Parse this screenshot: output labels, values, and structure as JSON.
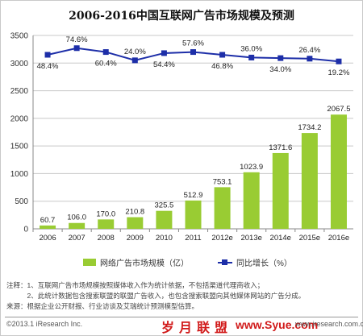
{
  "chart_data": {
    "type": "bar",
    "title": "2006-2016中国互联网广告市场规模及预测",
    "categories": [
      "2006",
      "2007",
      "2008",
      "2009",
      "2010",
      "2011",
      "2012e",
      "2013e",
      "2014e",
      "2015e",
      "2016e"
    ],
    "ylim": [
      0,
      3500
    ],
    "yticks": [
      0,
      500,
      1000,
      1500,
      2000,
      2500,
      3000,
      3500
    ],
    "grid": true,
    "legend_placement": "bottom",
    "series": [
      {
        "name": "网络广告市场规模（亿）",
        "type": "bar",
        "values": [
          60.7,
          106.0,
          170.0,
          210.8,
          325.5,
          512.9,
          753.1,
          1023.9,
          1371.6,
          1734.2,
          2067.5
        ],
        "labels": [
          "60.7",
          "106.0",
          "170.0",
          "210.8",
          "325.5",
          "512.9",
          "753.1",
          "1023.9",
          "1371.6",
          "1734.2",
          "2067.5"
        ],
        "color": "#99cc33"
      },
      {
        "name": "同比增长（%）",
        "type": "line",
        "values": [
          48.4,
          74.6,
          60.4,
          24.0,
          54.4,
          57.6,
          46.8,
          36.0,
          34.0,
          26.4,
          19.2
        ],
        "labels": [
          "48.4%",
          "74.6%",
          "60.4%",
          "24.0%",
          "54.4%",
          "57.6%",
          "46.8%",
          "36.0%",
          "34.0%",
          "26.4%",
          "19.2%"
        ],
        "plot_y_on_left_axis": [
          3150,
          3270,
          3200,
          3050,
          3180,
          3200,
          3150,
          3100,
          3090,
          3080,
          3030
        ],
        "color": "#1d2ea8"
      }
    ]
  },
  "notes": {
    "line1": "注释：1、互联网广告市场规模按照媒体收入作为统计依据，不包括渠道代理商收入；",
    "line2": "　　　2、此统计数据包含搜索联盟的联盟广告收入，也包含搜索联盟向其他媒体网站的广告分成。",
    "line3": "来源：根据企业公开财报、行业访谈及艾瑞统计预测模型估算。"
  },
  "footer": {
    "copyright": "©2013.1 iResearch Inc.",
    "url": "www.iresearch.com.cn",
    "watermark": "岁月联盟",
    "watermark_url": "www.Syue.com"
  }
}
